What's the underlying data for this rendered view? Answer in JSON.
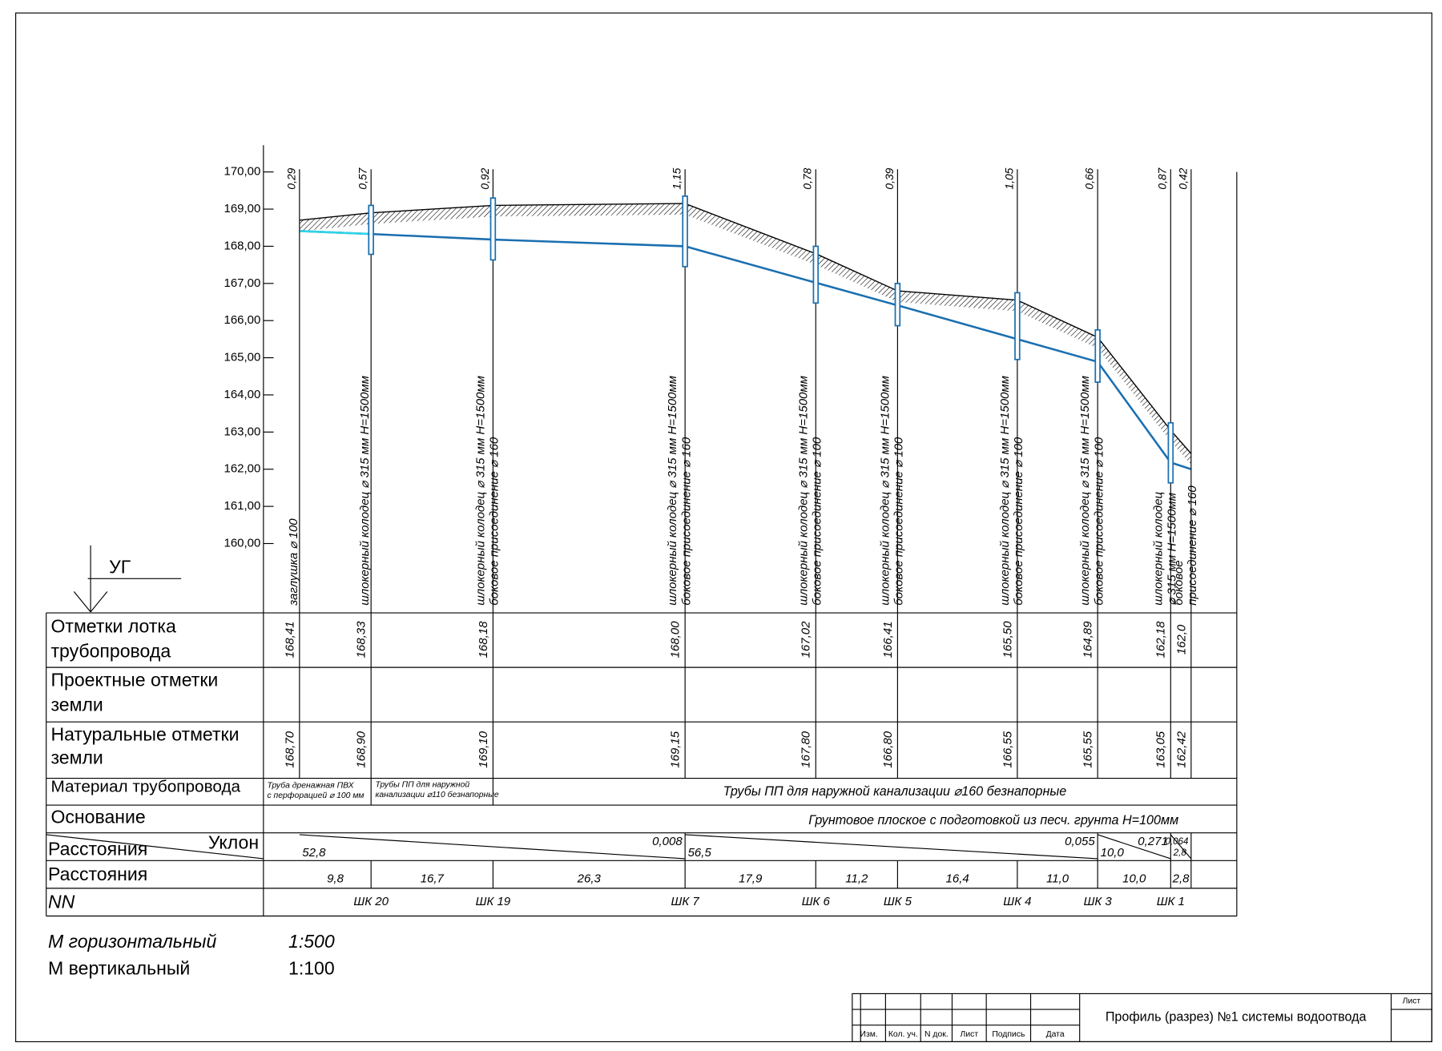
{
  "ug": "УГ",
  "elevation_ticks": [
    "170,00",
    "169,00",
    "168,00",
    "167,00",
    "166,00",
    "165,00",
    "164,00",
    "163,00",
    "162,00",
    "161,00",
    "160,00"
  ],
  "stations": [
    {
      "depth": "0,29",
      "description": [
        "заглушка ⌀ 100"
      ],
      "invert": "168,41",
      "ground": "168,70"
    },
    {
      "depth": "0,57",
      "description": [
        "шлокерный колодец ⌀ 315 мм H=1500мм"
      ],
      "invert": "168,33",
      "ground": "168,90",
      "id": "ШК 20"
    },
    {
      "depth": "0,92",
      "description": [
        "шлокерный колодец ⌀ 315 мм H=1500мм",
        "боковое присоединение ⌀ 160"
      ],
      "invert": "168,18",
      "ground": "169,10",
      "id": "ШК 19"
    },
    {
      "depth": "1,15",
      "description": [
        "шлокерный колодец ⌀ 315 мм H=1500мм",
        "боковое присоединение ⌀ 160"
      ],
      "invert": "168,00",
      "ground": "169,15",
      "id": "ШК 7"
    },
    {
      "depth": "0,78",
      "description": [
        "шлокерный колодец ⌀ 315 мм H=1500мм",
        "боковое присоединение ⌀ 100"
      ],
      "invert": "167,02",
      "ground": "167,80",
      "id": "ШК 6"
    },
    {
      "depth": "0,39",
      "description": [
        "шлокерный колодец ⌀ 315 мм H=1500мм",
        "боковое присоединение ⌀ 100"
      ],
      "invert": "166,41",
      "ground": "166,80",
      "id": "ШК 5"
    },
    {
      "depth": "1,05",
      "description": [
        "шлокерный колодец ⌀ 315 мм H=1500мм",
        "боковое присоединение ⌀ 100"
      ],
      "invert": "165,50",
      "ground": "166,55",
      "id": "ШК 4"
    },
    {
      "depth": "0,66",
      "description": [
        "шлокерный колодец ⌀ 315 мм H=1500мм",
        "боковое присоединение ⌀ 100"
      ],
      "invert": "164,89",
      "ground": "165,55",
      "id": "ШК 3"
    },
    {
      "depth": "0,87",
      "description": [
        "шлокерный колодец",
        "⌀ 315 мм H=1500мм"
      ],
      "invert": "162,18",
      "ground": "163,05",
      "id": "ШК 1"
    },
    {
      "depth": "0,42",
      "description": [
        "боковое",
        "присоединение ⌀ 160"
      ],
      "invert": "162,0",
      "ground": "162,42"
    }
  ],
  "distances": [
    "9,8",
    "16,7",
    "26,3",
    "17,9",
    "11,2",
    "16,4",
    "11,0",
    "10,0",
    "2,8"
  ],
  "slopes": [
    {
      "length": "52,8",
      "slope": "0,008"
    },
    {
      "length": "56,5",
      "slope": "0,055"
    },
    {
      "length": "10,0",
      "slope": "0,271"
    },
    {
      "length": "2,8",
      "slope": "0,064"
    }
  ],
  "row_labels": {
    "invert": [
      "Отметки лотка",
      "трубопровода"
    ],
    "design": [
      "Проектные отметки",
      " земли"
    ],
    "ground": [
      "Натуральные отметки",
      "земли"
    ],
    "material": "Материал трубопровода",
    "base": "Основание",
    "slope": [
      "Расстояния",
      "Уклон"
    ],
    "distance": "Расстояния",
    "nn": "NN"
  },
  "materials": [
    [
      "Труба дренажная ПВХ",
      "с перфорацией ⌀ 100 мм"
    ],
    [
      "Трубы ПП для наружной",
      "канализации ⌀110 безнапорные"
    ],
    "Трубы ПП для наружной канализации ⌀160 безнапорные"
  ],
  "base": "Грунтовое плоское с подготовкой из песч. грунта H=100мм",
  "scales": [
    {
      "label": "М горизонтальный",
      "value": "1:500"
    },
    {
      "label": "М вертикальный",
      "value": "1:100"
    }
  ],
  "title_block": {
    "columns": [
      "Изм.",
      "Кол. уч.",
      "N док.",
      "Лист",
      "Подпись",
      "Дата"
    ],
    "title": "Профиль (разрез) №1 системы водоотвода",
    "sheet": "Лист"
  }
}
